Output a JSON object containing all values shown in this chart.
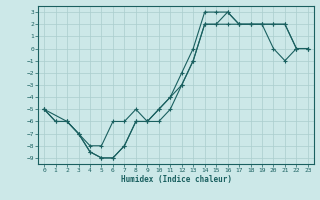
{
  "title": "",
  "xlabel": "Humidex (Indice chaleur)",
  "ylabel": "",
  "bg_color": "#cce8e8",
  "grid_color": "#aacece",
  "line_color": "#1a6060",
  "xlim": [
    -0.5,
    23.5
  ],
  "ylim": [
    -9.5,
    3.5
  ],
  "xticks": [
    0,
    1,
    2,
    3,
    4,
    5,
    6,
    7,
    8,
    9,
    10,
    11,
    12,
    13,
    14,
    15,
    16,
    17,
    18,
    19,
    20,
    21,
    22,
    23
  ],
  "yticks": [
    3,
    2,
    1,
    0,
    -1,
    -2,
    -3,
    -4,
    -5,
    -6,
    -7,
    -8,
    -9
  ],
  "line1_x": [
    0,
    1,
    2,
    3,
    4,
    5,
    6,
    7,
    8,
    9,
    10,
    11,
    12,
    13,
    14,
    15,
    16,
    17,
    18,
    19,
    20,
    21,
    22,
    23
  ],
  "line1_y": [
    -5,
    -6,
    -6,
    -7,
    -8.5,
    -9,
    -9,
    -8,
    -6,
    -6,
    -6,
    -5,
    -3,
    -1,
    2,
    2,
    2,
    2,
    2,
    2,
    0,
    -1,
    0,
    0
  ],
  "line2_x": [
    0,
    1,
    2,
    3,
    4,
    5,
    6,
    7,
    8,
    9,
    10,
    11,
    12,
    13,
    14,
    15,
    16,
    17,
    18,
    19,
    20,
    21,
    22,
    23
  ],
  "line2_y": [
    -5,
    -6,
    -6,
    -7,
    -8.5,
    -9,
    -9,
    -8,
    -6,
    -6,
    -5,
    -4,
    -2,
    0,
    3,
    3,
    3,
    2,
    2,
    2,
    2,
    2,
    0,
    0
  ],
  "line3_x": [
    0,
    2,
    3,
    4,
    5,
    6,
    7,
    8,
    9,
    10,
    11,
    12,
    13,
    14,
    15,
    16,
    17,
    18,
    19,
    20,
    21,
    22,
    23
  ],
  "line3_y": [
    -5,
    -6,
    -7,
    -8,
    -8,
    -6,
    -6,
    -5,
    -6,
    -5,
    -4,
    -3,
    -1,
    2,
    2,
    3,
    2,
    2,
    2,
    2,
    2,
    0,
    0
  ]
}
